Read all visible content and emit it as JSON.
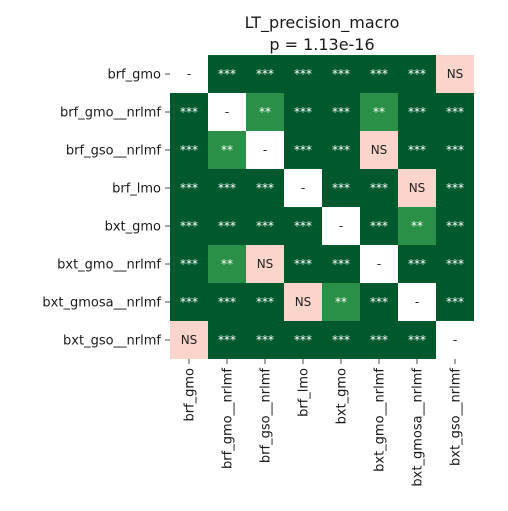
{
  "chart_data": {
    "type": "heatmap",
    "title": "LT_precision_macro",
    "subtitle": "p = 1.13e-16",
    "rows": [
      "brf_gmo",
      "brf_gmo__nrlmf",
      "brf_gso__nrlmf",
      "brf_lmo",
      "bxt_gmo",
      "bxt_gmo__nrlmf",
      "bxt_gmosa__nrlmf",
      "bxt_gso__nrlmf"
    ],
    "columns": [
      "brf_gmo",
      "brf_gmo__nrlmf",
      "brf_gso__nrlmf",
      "brf_lmo",
      "bxt_gmo",
      "bxt_gmo__nrlmf",
      "bxt_gmosa__nrlmf",
      "bxt_gso__nrlmf"
    ],
    "cells": [
      [
        "-",
        "***",
        "***",
        "***",
        "***",
        "***",
        "***",
        "NS"
      ],
      [
        "***",
        "-",
        "**",
        "***",
        "***",
        "**",
        "***",
        "***"
      ],
      [
        "***",
        "**",
        "-",
        "***",
        "***",
        "NS",
        "***",
        "***"
      ],
      [
        "***",
        "***",
        "***",
        "-",
        "***",
        "***",
        "NS",
        "***"
      ],
      [
        "***",
        "***",
        "***",
        "***",
        "-",
        "***",
        "**",
        "***"
      ],
      [
        "***",
        "**",
        "NS",
        "***",
        "***",
        "-",
        "***",
        "***"
      ],
      [
        "***",
        "***",
        "***",
        "NS",
        "**",
        "***",
        "-",
        "***"
      ],
      [
        "NS",
        "***",
        "***",
        "***",
        "***",
        "***",
        "***",
        "-"
      ]
    ],
    "colors": {
      "***": "#00592c",
      "**": "#2a9048",
      "NS": "#fbd5cb",
      "-": "#ffffff"
    },
    "text_colors": {
      "***": "#ffffff",
      "**": "#ffffff",
      "NS": "#222222",
      "-": "#222222"
    }
  }
}
